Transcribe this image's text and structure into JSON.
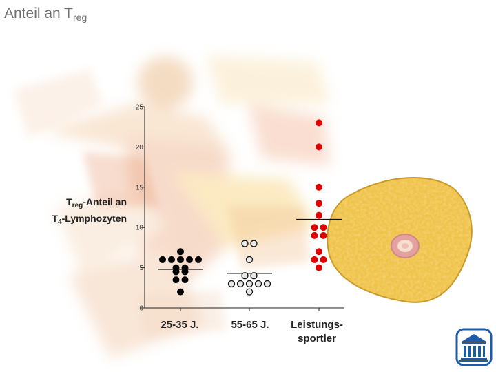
{
  "slide": {
    "title_main": "Anteil an T",
    "title_sub": "reg"
  },
  "y_axis_label": {
    "line1_main": "T",
    "line1_sub": "reg",
    "line1_rest": "-Anteil an",
    "line2_main": "T",
    "line2_sub": "4",
    "line2_rest": "-Lymphozyten"
  },
  "colors": {
    "group1": "#000000",
    "group2_fill": "#e8e8e8",
    "group2_stroke": "#111111",
    "group3": "#e00000",
    "logo": "#1d5aa8"
  },
  "icons": [
    "runner-background-art",
    "cell-cross-section-image",
    "university-building-logo"
  ],
  "chart_data": {
    "type": "scatter",
    "title": "",
    "ylabel": "",
    "xlabel": "",
    "ylim": [
      0,
      25
    ],
    "yticks": [
      0,
      5,
      10,
      15,
      20,
      25
    ],
    "categories": [
      "25-35 J.",
      "55-65 J.",
      "Leistungs-\nsportler"
    ],
    "category_lines": [
      [
        "25-35 J."
      ],
      [
        "55-65 J."
      ],
      [
        "Leistungs-",
        "sportler"
      ]
    ],
    "series": [
      {
        "category": "25-35 J.",
        "values": [
          7.0,
          6.0,
          6.0,
          6.0,
          6.0,
          6.0,
          5.0,
          5.0,
          4.5,
          4.5,
          3.5,
          3.5,
          2.0
        ],
        "median": 4.8
      },
      {
        "category": "55-65 J.",
        "values": [
          8.0,
          8.0,
          6.0,
          4.0,
          4.0,
          3.0,
          3.0,
          3.0,
          3.0,
          3.0,
          2.0
        ],
        "median": 4.3
      },
      {
        "category": "Leistungs-\nsportler",
        "values": [
          23.0,
          20.0,
          15.0,
          13.0,
          11.5,
          10.0,
          10.0,
          9.0,
          9.0,
          7.0,
          6.0,
          6.0,
          5.0
        ],
        "median": 11.0
      }
    ]
  }
}
